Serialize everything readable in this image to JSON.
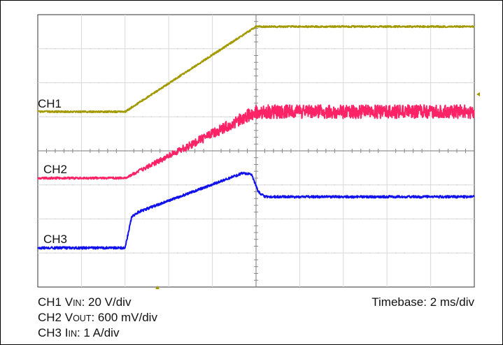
{
  "chart_data": {
    "type": "line",
    "chart_kind": "oscilloscope-capture",
    "grid": true,
    "divisions": {
      "x": 10,
      "y": 8
    },
    "timebase": "Timebase: 2 ms/div",
    "channel_settings": [
      {
        "ch": "CH1",
        "sig": "V",
        "sig_sub": "IN",
        "scale": ": 20 V/div"
      },
      {
        "ch": "CH2",
        "sig": "V",
        "sig_sub": "OUT",
        "scale": ": 600 mV/div"
      },
      {
        "ch": "CH3",
        "sig": "I",
        "sig_sub": "IN",
        "scale": ": 1 A/div"
      }
    ],
    "x_unit": "div",
    "y_unit": "div (0 = top graticule line)",
    "series": [
      {
        "name": "CH1",
        "color": "#a39a00",
        "noise": 0.05,
        "x": [
          0,
          2.0,
          5.0,
          10.0
        ],
        "y": [
          2.85,
          2.85,
          0.35,
          0.35
        ]
      },
      {
        "name": "CH2",
        "color": "#ff2266",
        "noise_start": 0.06,
        "noise_end": 0.4,
        "noise_from_x": 2.0,
        "x": [
          0,
          2.0,
          5.0,
          10.0
        ],
        "y": [
          4.8,
          4.8,
          2.85,
          2.85
        ]
      },
      {
        "name": "CH3",
        "color": "#1111ee",
        "noise": 0.07,
        "x": [
          0,
          2.0,
          2.15,
          2.3,
          4.7,
          4.9,
          5.05,
          5.2,
          10.0
        ],
        "y": [
          6.85,
          6.85,
          5.95,
          5.8,
          4.65,
          4.7,
          5.2,
          5.35,
          5.35
        ]
      }
    ],
    "trigger_markers_color": "#a39a00"
  }
}
